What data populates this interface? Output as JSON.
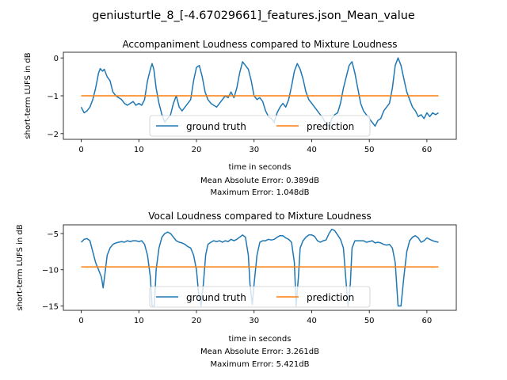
{
  "figure": {
    "suptitle": "geniusturtle_8_[-4.67029661]_features.json_Mean_value"
  },
  "colors": {
    "ground_truth": "#1f77b4",
    "prediction": "#ff7f0e",
    "axis": "#000000",
    "legend_border": "#cccccc"
  },
  "chart_data": [
    {
      "type": "line",
      "title": "Accompaniment Loudness compared to Mixture Loudness",
      "xlabel": "time in seconds",
      "ylabel": "short-term LUFS in dB",
      "error_lines": [
        "Mean Absolute Error: 0.389dB",
        "Maximum Error: 1.048dB"
      ],
      "xlim": [
        -3.1,
        65.1
      ],
      "ylim": [
        -2.15,
        0.15
      ],
      "xticks": [
        0,
        10,
        20,
        30,
        40,
        50,
        60
      ],
      "xtick_labels": [
        "0",
        "10",
        "20",
        "30",
        "40",
        "50",
        "60"
      ],
      "yticks": [
        0,
        -1,
        -2
      ],
      "ytick_labels": [
        "0",
        "−1",
        "−2"
      ],
      "legend": {
        "placement": "lower center",
        "columns": 2
      },
      "series": [
        {
          "name": "ground truth",
          "color_key": "ground_truth",
          "x": [
            0,
            0.5,
            1,
            1.5,
            2,
            2.5,
            3,
            3.3,
            3.7,
            4,
            4.5,
            5,
            5.5,
            6,
            6.5,
            7,
            7.5,
            8,
            8.5,
            9,
            9.5,
            10,
            10.5,
            11,
            11.5,
            12,
            12.3,
            12.6,
            13,
            13.5,
            14,
            14.5,
            15,
            15.5,
            16,
            16.5,
            17,
            17.5,
            18,
            18.5,
            19,
            19.5,
            20,
            20.5,
            21,
            21.5,
            22,
            22.5,
            23,
            23.5,
            24,
            24.5,
            25,
            25.5,
            26,
            26.5,
            27,
            27.5,
            28,
            28.5,
            29,
            29.5,
            30,
            30.5,
            31,
            31.5,
            32,
            32.5,
            33,
            33.5,
            34,
            34.5,
            35,
            35.5,
            36,
            36.5,
            37,
            37.5,
            38,
            38.5,
            39,
            39.5,
            40,
            40.5,
            41,
            41.5,
            42,
            42.5,
            43,
            43.5,
            44,
            44.5,
            45,
            45.5,
            46,
            46.5,
            47,
            47.5,
            48,
            48.5,
            49,
            49.5,
            50,
            50.5,
            51,
            51.5,
            52,
            52.5,
            53,
            53.5,
            54,
            54.5,
            55,
            55.5,
            56,
            56.5,
            57,
            57.5,
            58,
            58.5,
            59,
            59.5,
            60,
            60.5,
            61,
            61.5,
            62
          ],
          "y": [
            -1.3,
            -1.45,
            -1.4,
            -1.3,
            -1.1,
            -0.8,
            -0.4,
            -0.28,
            -0.35,
            -0.3,
            -0.5,
            -0.6,
            -0.9,
            -1.0,
            -1.05,
            -1.1,
            -1.2,
            -1.25,
            -1.2,
            -1.15,
            -1.25,
            -1.2,
            -1.25,
            -1.1,
            -0.6,
            -0.3,
            -0.15,
            -0.3,
            -0.8,
            -1.2,
            -1.5,
            -1.7,
            -1.6,
            -1.5,
            -1.2,
            -1.0,
            -1.3,
            -1.4,
            -1.3,
            -1.2,
            -1.1,
            -0.6,
            -0.25,
            -0.2,
            -0.5,
            -0.9,
            -1.1,
            -1.2,
            -1.25,
            -1.3,
            -1.2,
            -1.1,
            -1.0,
            -1.05,
            -0.9,
            -1.05,
            -0.8,
            -0.4,
            -0.1,
            -0.2,
            -0.3,
            -0.6,
            -1.0,
            -1.1,
            -1.05,
            -1.15,
            -1.4,
            -1.55,
            -1.6,
            -1.7,
            -1.45,
            -1.3,
            -1.2,
            -1.3,
            -1.1,
            -0.75,
            -0.35,
            -0.15,
            -0.3,
            -0.55,
            -0.9,
            -1.1,
            -1.2,
            -1.3,
            -1.4,
            -1.5,
            -1.6,
            -1.75,
            -1.8,
            -1.6,
            -1.5,
            -1.45,
            -1.2,
            -0.8,
            -0.5,
            -0.2,
            -0.1,
            -0.4,
            -0.8,
            -1.2,
            -1.4,
            -1.5,
            -1.6,
            -1.7,
            -1.8,
            -1.65,
            -1.6,
            -1.4,
            -1.3,
            -1.2,
            -0.8,
            -0.2,
            0.0,
            -0.2,
            -0.55,
            -0.9,
            -1.1,
            -1.3,
            -1.4,
            -1.55,
            -1.5,
            -1.6,
            -1.45,
            -1.55,
            -1.45,
            -1.5,
            -1.45
          ]
        },
        {
          "name": "prediction",
          "color_key": "prediction",
          "x": [
            0,
            62
          ],
          "y": [
            -1.0,
            -1.0
          ]
        }
      ]
    },
    {
      "type": "line",
      "title": "Vocal Loudness compared to Mixture Loudness",
      "xlabel": "time in seconds",
      "ylabel": "short-term LUFS in dB",
      "error_lines": [
        "Mean Absolute Error: 3.261dB",
        "Maximum Error: 5.421dB"
      ],
      "xlim": [
        -3.1,
        65.1
      ],
      "ylim": [
        -15.6,
        -3.8
      ],
      "xticks": [
        0,
        10,
        20,
        30,
        40,
        50,
        60
      ],
      "xtick_labels": [
        "0",
        "10",
        "20",
        "30",
        "40",
        "50",
        "60"
      ],
      "yticks": [
        -5,
        -10,
        -15
      ],
      "ytick_labels": [
        "−5",
        "−10",
        "−15"
      ],
      "legend": {
        "placement": "lower center",
        "columns": 2
      },
      "series": [
        {
          "name": "ground truth",
          "color_key": "ground_truth",
          "x": [
            0,
            0.5,
            1,
            1.5,
            2,
            2.5,
            3,
            3.5,
            3.8,
            4.2,
            4.5,
            5,
            5.5,
            6,
            6.5,
            7,
            7.5,
            8,
            8.5,
            9,
            9.5,
            10,
            10.5,
            11,
            11.5,
            12,
            12.3,
            12.7,
            13,
            13.5,
            14,
            14.5,
            15,
            15.5,
            16,
            16.5,
            17,
            17.5,
            18,
            18.5,
            19,
            19.5,
            20,
            20.4,
            20.8,
            21.2,
            21.6,
            22,
            22.5,
            23,
            23.5,
            24,
            24.5,
            25,
            25.5,
            26,
            26.5,
            27,
            27.5,
            28,
            28.5,
            29,
            29.3,
            29.7,
            30,
            30.5,
            31,
            31.5,
            32,
            32.5,
            33,
            33.5,
            34,
            34.5,
            35,
            35.5,
            36,
            36.5,
            37,
            37.3,
            37.7,
            38,
            38.5,
            39,
            39.5,
            40,
            40.5,
            41,
            41.5,
            42,
            42.5,
            43,
            43.5,
            44,
            44.5,
            45,
            45.5,
            46,
            46.3,
            46.7,
            47,
            47.5,
            48,
            48.5,
            49,
            49.5,
            50,
            50.5,
            51,
            51.5,
            52,
            52.5,
            53,
            53.5,
            54,
            54.5,
            55,
            55.5,
            56,
            56.5,
            57,
            57.5,
            58,
            58.5,
            59,
            59.5,
            60,
            60.5,
            61,
            61.5,
            62
          ],
          "y": [
            -6.2,
            -5.8,
            -5.7,
            -6.0,
            -7.5,
            -9.0,
            -10.0,
            -11.0,
            -12.5,
            -10.0,
            -8.0,
            -7.0,
            -6.5,
            -6.3,
            -6.2,
            -6.1,
            -6.2,
            -6.0,
            -6.1,
            -6.0,
            -6.0,
            -6.1,
            -6.0,
            -6.5,
            -8.0,
            -11.0,
            -15.0,
            -15.0,
            -10.0,
            -7.0,
            -5.5,
            -5.0,
            -4.8,
            -5.0,
            -5.5,
            -6.0,
            -6.2,
            -6.3,
            -6.5,
            -6.8,
            -7.0,
            -8.0,
            -10.0,
            -13.5,
            -15.0,
            -12.0,
            -8.0,
            -6.5,
            -6.2,
            -6.0,
            -6.1,
            -6.0,
            -6.2,
            -6.0,
            -6.1,
            -5.8,
            -6.0,
            -5.8,
            -5.5,
            -5.2,
            -5.5,
            -8.0,
            -12.0,
            -14.8,
            -12.0,
            -8.0,
            -6.2,
            -6.0,
            -6.0,
            -5.8,
            -5.9,
            -5.8,
            -5.5,
            -5.3,
            -5.3,
            -5.6,
            -5.8,
            -6.2,
            -9.0,
            -15.0,
            -11.0,
            -7.0,
            -6.0,
            -5.5,
            -5.2,
            -5.2,
            -5.4,
            -6.0,
            -6.2,
            -6.0,
            -5.9,
            -5.0,
            -4.4,
            -4.6,
            -5.2,
            -5.8,
            -7.0,
            -12.0,
            -15.0,
            -12.0,
            -7.0,
            -6.0,
            -6.0,
            -6.0,
            -6.0,
            -6.2,
            -6.1,
            -6.0,
            -6.3,
            -6.2,
            -6.3,
            -6.5,
            -6.6,
            -6.5,
            -7.0,
            -9.0,
            -15.0,
            -15.0,
            -11.0,
            -7.5,
            -6.0,
            -5.5,
            -5.3,
            -5.6,
            -6.2,
            -6.0,
            -5.6,
            -5.8,
            -6.0,
            -6.1,
            -6.2
          ]
        },
        {
          "name": "prediction",
          "color_key": "prediction",
          "x": [
            0,
            62
          ],
          "y": [
            -9.6,
            -9.6
          ]
        }
      ]
    }
  ]
}
